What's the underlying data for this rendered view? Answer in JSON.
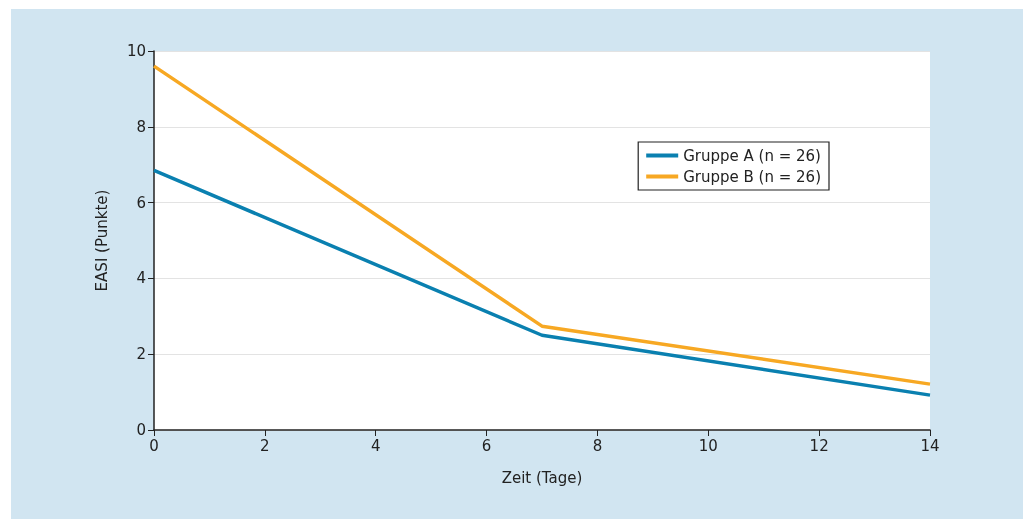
{
  "chart_data": {
    "type": "line",
    "xlabel": "Zeit (Tage)",
    "ylabel": "EASI (Punkte)",
    "x": [
      0,
      7,
      14
    ],
    "series": [
      {
        "name": "Gruppe A (n = 26)",
        "color": "#0a80b0",
        "values": [
          6.85,
          2.5,
          0.92
        ]
      },
      {
        "name": "Gruppe B (n = 26)",
        "color": "#f7a823",
        "values": [
          9.6,
          2.74,
          1.21
        ]
      }
    ],
    "xlim": [
      0,
      14
    ],
    "xticks": [
      0,
      2,
      4,
      6,
      8,
      10,
      12,
      14
    ],
    "ylim": [
      0,
      10
    ],
    "yticks": [
      0,
      2,
      4,
      6,
      8,
      10
    ],
    "grid": "y",
    "legend": "top right",
    "marker": "none",
    "line_style": "solid"
  }
}
